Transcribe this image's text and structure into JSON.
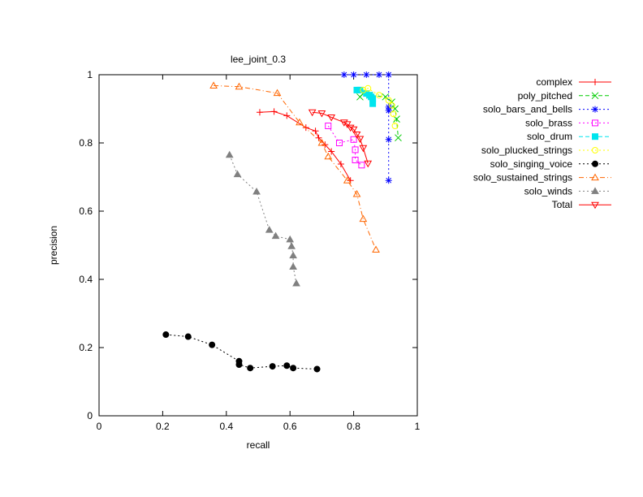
{
  "chart_data": {
    "type": "line",
    "title": "lee_joint_0.3",
    "xlabel": "recall",
    "ylabel": "precision",
    "xlim": [
      0,
      1
    ],
    "ylim": [
      0,
      1
    ],
    "x_ticks": [
      0,
      0.2,
      0.4,
      0.6,
      0.8,
      1
    ],
    "x_tick_labels": [
      "0",
      "0.2",
      "0.4",
      "0.6",
      "0.8",
      "1"
    ],
    "y_ticks": [
      0,
      0.2,
      0.4,
      0.6,
      0.8,
      1
    ],
    "y_tick_labels": [
      "0",
      "0.2",
      "0.4",
      "0.6",
      "0.8",
      "1"
    ],
    "grid": false,
    "legend_position": "outside-right",
    "series": [
      {
        "name": "complex",
        "color": "#ff0000",
        "marker": "plus",
        "dash": "",
        "points": [
          [
            0.505,
            0.89
          ],
          [
            0.55,
            0.892
          ],
          [
            0.59,
            0.88
          ],
          [
            0.65,
            0.845
          ],
          [
            0.68,
            0.835
          ],
          [
            0.69,
            0.815
          ],
          [
            0.71,
            0.795
          ],
          [
            0.73,
            0.775
          ],
          [
            0.76,
            0.738
          ],
          [
            0.79,
            0.69
          ]
        ]
      },
      {
        "name": "poly_pitched",
        "color": "#00cc00",
        "marker": "x",
        "dash": "5,3",
        "points": [
          [
            0.82,
            0.935
          ],
          [
            0.83,
            0.945
          ],
          [
            0.85,
            0.94
          ],
          [
            0.9,
            0.935
          ],
          [
            0.92,
            0.92
          ],
          [
            0.93,
            0.9
          ],
          [
            0.935,
            0.87
          ],
          [
            0.94,
            0.815
          ]
        ]
      },
      {
        "name": "solo_bars_and_bells",
        "color": "#0000ff",
        "marker": "star",
        "dash": "2,3",
        "points": [
          [
            0.77,
            1.0
          ],
          [
            0.8,
            1.0
          ],
          [
            0.84,
            1.0
          ],
          [
            0.88,
            1.0
          ],
          [
            0.91,
            1.0
          ],
          [
            0.91,
            0.905
          ],
          [
            0.91,
            0.895
          ],
          [
            0.91,
            0.81
          ],
          [
            0.91,
            0.69
          ]
        ]
      },
      {
        "name": "solo_brass",
        "color": "#ff00ff",
        "marker": "square",
        "dash": "2,3",
        "points": [
          [
            0.72,
            0.85
          ],
          [
            0.755,
            0.8
          ],
          [
            0.8,
            0.81
          ],
          [
            0.805,
            0.78
          ],
          [
            0.805,
            0.75
          ],
          [
            0.825,
            0.735
          ]
        ]
      },
      {
        "name": "solo_drum",
        "color": "#00e5ee",
        "marker": "filled-square",
        "dash": "5,3",
        "points": [
          [
            0.81,
            0.955
          ],
          [
            0.82,
            0.955
          ],
          [
            0.84,
            0.945
          ],
          [
            0.85,
            0.94
          ],
          [
            0.855,
            0.935
          ],
          [
            0.86,
            0.93
          ],
          [
            0.86,
            0.915
          ]
        ]
      },
      {
        "name": "solo_plucked_strings",
        "color": "#ffff00",
        "marker": "circle",
        "dash": "2,3",
        "points": [
          [
            0.83,
            0.955
          ],
          [
            0.845,
            0.96
          ],
          [
            0.88,
            0.94
          ],
          [
            0.91,
            0.925
          ],
          [
            0.92,
            0.91
          ],
          [
            0.925,
            0.885
          ],
          [
            0.93,
            0.85
          ]
        ]
      },
      {
        "name": "solo_singing_voice",
        "color": "#000000",
        "marker": "filled-circle",
        "dash": "2,3",
        "points": [
          [
            0.21,
            0.238
          ],
          [
            0.28,
            0.232
          ],
          [
            0.355,
            0.208
          ],
          [
            0.44,
            0.16
          ],
          [
            0.44,
            0.15
          ],
          [
            0.475,
            0.14
          ],
          [
            0.545,
            0.145
          ],
          [
            0.59,
            0.147
          ],
          [
            0.61,
            0.14
          ],
          [
            0.685,
            0.137
          ]
        ]
      },
      {
        "name": "solo_sustained_strings",
        "color": "#ff6600",
        "marker": "triangle",
        "dash": "6,3,1,3",
        "points": [
          [
            0.36,
            0.968
          ],
          [
            0.44,
            0.965
          ],
          [
            0.56,
            0.946
          ],
          [
            0.63,
            0.86
          ],
          [
            0.7,
            0.8
          ],
          [
            0.72,
            0.76
          ],
          [
            0.78,
            0.69
          ],
          [
            0.81,
            0.65
          ],
          [
            0.83,
            0.577
          ],
          [
            0.87,
            0.487
          ]
        ]
      },
      {
        "name": "solo_winds",
        "color": "#808080",
        "marker": "filled-triangle",
        "dash": "2,3",
        "points": [
          [
            0.41,
            0.765
          ],
          [
            0.435,
            0.708
          ],
          [
            0.495,
            0.657
          ],
          [
            0.535,
            0.545
          ],
          [
            0.555,
            0.527
          ],
          [
            0.6,
            0.517
          ],
          [
            0.605,
            0.497
          ],
          [
            0.61,
            0.47
          ],
          [
            0.61,
            0.437
          ],
          [
            0.62,
            0.388
          ]
        ]
      },
      {
        "name": "Total",
        "color": "#ff0000",
        "marker": "triangle-down",
        "dash": "",
        "points": [
          [
            0.67,
            0.89
          ],
          [
            0.7,
            0.887
          ],
          [
            0.73,
            0.875
          ],
          [
            0.77,
            0.86
          ],
          [
            0.78,
            0.855
          ],
          [
            0.79,
            0.845
          ],
          [
            0.8,
            0.84
          ],
          [
            0.81,
            0.825
          ],
          [
            0.82,
            0.812
          ],
          [
            0.83,
            0.785
          ],
          [
            0.845,
            0.74
          ]
        ]
      }
    ]
  }
}
